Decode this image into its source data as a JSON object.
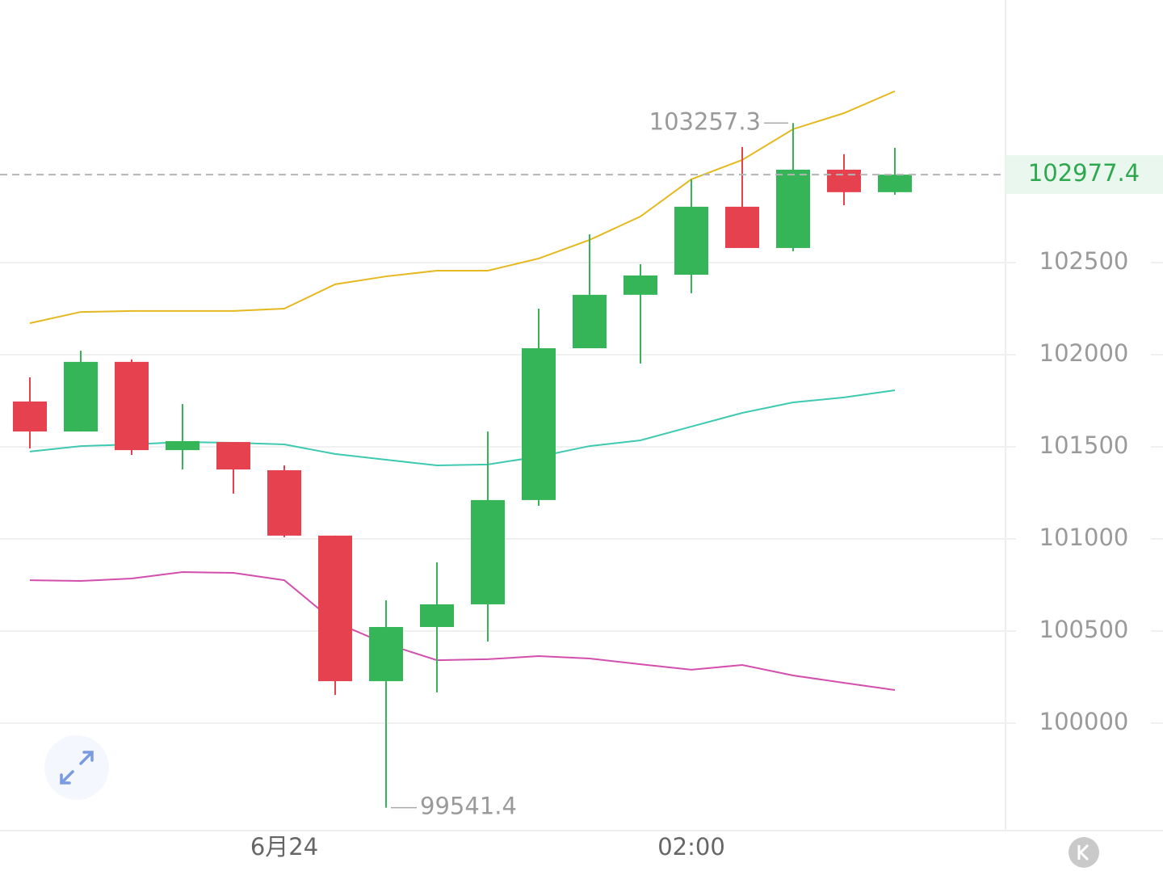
{
  "chart_data": {
    "type": "candlestick",
    "categories": [
      null,
      null,
      null,
      null,
      null,
      "6月24",
      null,
      null,
      null,
      null,
      null,
      null,
      null,
      "02:00",
      null,
      null,
      null,
      null
    ],
    "open": [
      101746,
      101583,
      101961,
      101482,
      101526,
      101373,
      101018,
      100228,
      100522,
      100645,
      101211,
      102035,
      102325,
      102434,
      102803,
      102579,
      103004,
      102882
    ],
    "high": [
      101877,
      102022,
      101974,
      101732,
      101526,
      101399,
      101018,
      100667,
      100873,
      101583,
      102250,
      102654,
      102491,
      102952,
      103127,
      103257.3,
      103088,
      103123
    ],
    "low": [
      101491,
      101583,
      101456,
      101377,
      101246,
      101009,
      100153,
      99541.4,
      100167,
      100443,
      101180,
      102035,
      101952,
      102333,
      102579,
      102561,
      102811,
      102868
    ],
    "close": [
      101583,
      101961,
      101482,
      101531,
      101377,
      101018,
      100228,
      100522,
      100645,
      101211,
      102035,
      102325,
      102430,
      102803,
      102579,
      103004,
      102882,
      102977.4
    ],
    "up_color": "#35b557",
    "down_color": "#e5414f",
    "overlays": [
      {
        "color": "#e5b820",
        "values": [
          102171,
          102232,
          102237,
          102237,
          102237,
          102250,
          102382,
          102425,
          102456,
          102456,
          102522,
          102623,
          102750,
          102952,
          103057,
          103224,
          103311,
          103430
        ]
      },
      {
        "color": "#3ec9b0",
        "values": [
          101474,
          101504,
          101513,
          101526,
          101522,
          101513,
          101461,
          101430,
          101399,
          101404,
          101447,
          101504,
          101535,
          101610,
          101684,
          101741,
          101768,
          101807
        ]
      },
      {
        "color": "#d24fae",
        "values": [
          100776,
          100772,
          100785,
          100820,
          100816,
          100776,
          100548,
          100430,
          100342,
          100347,
          100364,
          100351,
          100320,
          100290,
          100316,
          100259,
          100219,
          100180
        ]
      }
    ],
    "ylim": [
      99417,
      103925
    ],
    "yticks": [
      100000,
      100500,
      101000,
      101500,
      102000,
      102500
    ],
    "grid": true
  }
}
